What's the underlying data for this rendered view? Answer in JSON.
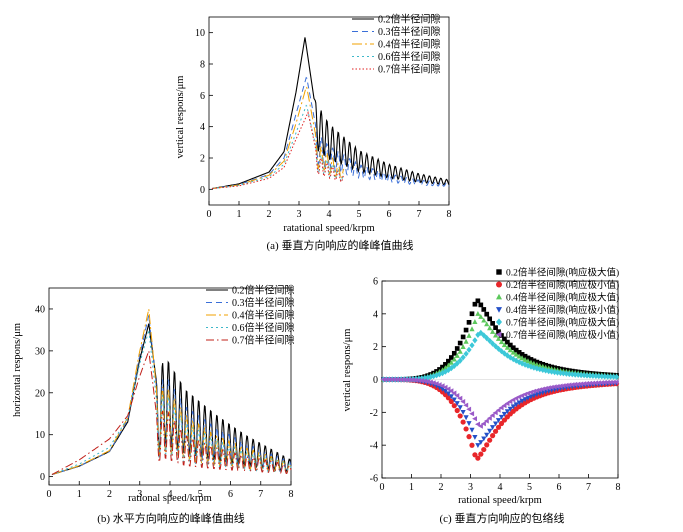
{
  "figure": {
    "caption_a": "(a) 垂直方向响应的峰峰值曲线",
    "caption_b": "(b) 水平方向响应的峰峰值曲线",
    "caption_c": "(c) 垂直方向响应的包络线"
  },
  "chart_data": [
    {
      "id": "a",
      "type": "line",
      "title": "",
      "xlabel": "ratational speed/krpm",
      "ylabel": "vertical respons/μm",
      "xlim": [
        0,
        8
      ],
      "ylim": [
        -1,
        11
      ],
      "xticks": [
        0,
        1,
        2,
        3,
        4,
        5,
        6,
        7,
        8
      ],
      "yticks": [
        0,
        2,
        4,
        6,
        8,
        10
      ],
      "legend_position": "top-right",
      "series": [
        {
          "name": "0.2倍半径间隙",
          "color": "#000000",
          "dash": "solid",
          "peak": 9.7,
          "x": [
            0.1,
            1,
            2,
            2.5,
            2.9,
            3.2,
            3.5,
            4,
            5,
            6,
            7,
            8
          ],
          "y": [
            0.05,
            0.35,
            1.1,
            2.4,
            6.2,
            9.7,
            5.8,
            4.2,
            2.5,
            1.6,
            1.0,
            0.6
          ]
        },
        {
          "name": "0.3倍半径间隙",
          "color": "#3a6fd8",
          "dash": "6,4",
          "peak": 7.2,
          "x": [
            0.1,
            1,
            2,
            2.5,
            2.9,
            3.25,
            3.6,
            4,
            5,
            6,
            7,
            8
          ],
          "y": [
            0.05,
            0.3,
            0.95,
            2.0,
            4.8,
            7.2,
            3.6,
            2.8,
            1.6,
            1.0,
            0.6,
            0.4
          ]
        },
        {
          "name": "0.4倍半径间隙",
          "color": "#f0a000",
          "dash": "10,3,2,3",
          "peak": 6.6,
          "x": [
            0.1,
            1,
            2,
            2.5,
            2.9,
            3.25,
            3.6,
            4,
            4.5
          ],
          "y": [
            0.05,
            0.28,
            0.9,
            1.8,
            4.2,
            6.6,
            3.0,
            2.2,
            1.3
          ]
        },
        {
          "name": "0.6倍半径间隙",
          "color": "#3db8c9",
          "dash": "2,3",
          "peak": 5.4,
          "x": [
            0.1,
            1,
            2,
            2.5,
            2.9,
            3.25,
            3.6,
            4,
            4.5
          ],
          "y": [
            0.05,
            0.25,
            0.8,
            1.6,
            3.6,
            5.4,
            2.4,
            1.8,
            1.0
          ]
        },
        {
          "name": "0.7倍半径间隙",
          "color": "#e02020",
          "dash": "1.5,2",
          "peak": 4.9,
          "x": [
            0.1,
            1,
            2,
            2.5,
            2.9,
            3.3,
            3.6,
            4,
            4.5
          ],
          "y": [
            0.05,
            0.22,
            0.7,
            1.4,
            3.2,
            4.9,
            2.2,
            1.6,
            0.9
          ]
        }
      ]
    },
    {
      "id": "b",
      "type": "line",
      "title": "",
      "xlabel": "rational speed/krpm",
      "ylabel": "horizontal respons/μm",
      "xlim": [
        0,
        8
      ],
      "ylim": [
        -2,
        45
      ],
      "xticks": [
        0,
        1,
        2,
        3,
        4,
        5,
        6,
        7,
        8
      ],
      "yticks": [
        0,
        10,
        20,
        30,
        40
      ],
      "legend_position": "top-right",
      "series": [
        {
          "name": "0.2倍半径间隙",
          "color": "#000000",
          "dash": "solid",
          "peak": 36.5,
          "x": [
            0.1,
            1,
            2,
            2.6,
            3.0,
            3.3,
            3.6,
            3.8,
            4.5,
            5.5,
            6.5,
            7.5,
            8
          ],
          "y": [
            0.5,
            2.5,
            6.0,
            13.0,
            28.0,
            36.5,
            20.0,
            29.5,
            21.0,
            15.0,
            10.0,
            6.0,
            4.0
          ]
        },
        {
          "name": "0.3倍半径间隙",
          "color": "#3a6fd8",
          "dash": "6,4",
          "peak": 38.5,
          "x": [
            0.1,
            1,
            2,
            2.6,
            3.0,
            3.3,
            3.6,
            3.8,
            4.5,
            5.5,
            6.5,
            7.5,
            8
          ],
          "y": [
            0.5,
            2.5,
            6.0,
            13.5,
            29.0,
            38.5,
            18.0,
            25.0,
            17.0,
            12.0,
            8.0,
            5.0,
            3.5
          ]
        },
        {
          "name": "0.4倍半径间隙",
          "color": "#f0a000",
          "dash": "10,3,2,3",
          "peak": 40.0,
          "x": [
            0.1,
            1,
            2,
            2.6,
            3.0,
            3.3,
            3.6,
            3.8,
            4.5,
            5.5,
            6.5,
            7.5,
            8
          ],
          "y": [
            0.5,
            2.6,
            6.2,
            14.0,
            30.0,
            40.0,
            17.0,
            23.0,
            15.0,
            10.0,
            7.0,
            4.5,
            3.0
          ]
        },
        {
          "name": "0.6倍半径间隙",
          "color": "#3db8c9",
          "dash": "2,3",
          "peak": 35.0,
          "x": [
            0.1,
            1,
            2,
            2.6,
            3.0,
            3.3,
            3.6,
            3.8,
            4.5,
            5.5,
            6.5,
            7.5,
            8
          ],
          "y": [
            0.5,
            3.0,
            7.0,
            14.0,
            27.0,
            35.0,
            15.0,
            21.0,
            13.0,
            9.0,
            6.0,
            4.0,
            3.0
          ]
        },
        {
          "name": "0.7倍半径间隙",
          "color": "#c0201a",
          "dash": "8,3,1.5,3",
          "peak": 30.0,
          "x": [
            0.1,
            1,
            2,
            2.6,
            3.0,
            3.3,
            3.6,
            3.8,
            4.5,
            5.5,
            6.5,
            7.5,
            8
          ],
          "y": [
            0.5,
            4.0,
            9.0,
            14.5,
            24.0,
            30.0,
            12.0,
            17.0,
            10.0,
            7.0,
            5.0,
            3.5,
            2.5
          ]
        }
      ]
    },
    {
      "id": "c",
      "type": "scatter",
      "title": "",
      "xlabel": "rational speed/krpm",
      "ylabel": "vertical respons/μm",
      "xlim": [
        0,
        8
      ],
      "ylim": [
        -6,
        6
      ],
      "xticks": [
        0,
        1,
        2,
        3,
        4,
        5,
        6,
        7,
        8
      ],
      "yticks": [
        -6,
        -4,
        -2,
        0,
        2,
        4,
        6
      ],
      "legend_position": "top-right",
      "series": [
        {
          "name": "0.2倍半径间隙(响应极大值)",
          "color": "#000000",
          "marker": "square",
          "sign": 1,
          "peak": 4.9,
          "peak_x": 3.2
        },
        {
          "name": "0.2倍半径间隙(响应极小值)",
          "color": "#e8262a",
          "marker": "circle",
          "sign": -1,
          "peak": 4.9,
          "peak_x": 3.2
        },
        {
          "name": "0.4倍半径间隙(响应极大值)",
          "color": "#5cc85c",
          "marker": "triangle-up",
          "sign": 1,
          "peak": 4.0,
          "peak_x": 3.25
        },
        {
          "name": "0.4倍半径间隙(响应极小值)",
          "color": "#2450c8",
          "marker": "triangle-down",
          "sign": -1,
          "peak": 4.0,
          "peak_x": 3.25
        },
        {
          "name": "0.7倍半径间隙(响应极大值)",
          "color": "#3cc8d8",
          "marker": "diamond",
          "sign": 1,
          "peak": 2.9,
          "peak_x": 3.3
        },
        {
          "name": "0.7倍半径间隙(响应极小值)",
          "color": "#9a5ac8",
          "marker": "triangle-left",
          "sign": -1,
          "peak": 2.9,
          "peak_x": 3.3
        }
      ]
    }
  ]
}
